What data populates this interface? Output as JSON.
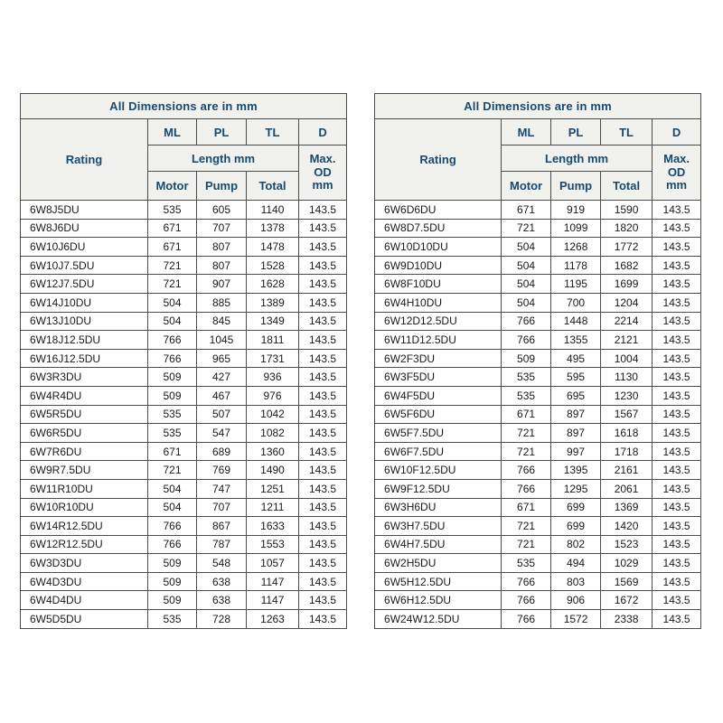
{
  "title_banner": "All Dimensions are in mm",
  "headers": {
    "rating": "Rating",
    "ml": "ML",
    "pl": "PL",
    "tl": "TL",
    "d": "D",
    "length_group": "Length mm",
    "max_od": "Max.\nOD\nmm",
    "motor": "Motor",
    "pump": "Pump",
    "total": "Total"
  },
  "colors": {
    "header_text": "#174a70",
    "header_background": "#f1f1ee",
    "border": "#4c4c4c",
    "body_text": "#1a1a1a",
    "page_background": "#ffffff"
  },
  "tables": [
    {
      "rows": [
        [
          "6W8J5DU",
          "535",
          "605",
          "1140",
          "143.5"
        ],
        [
          "6W8J6DU",
          "671",
          "707",
          "1378",
          "143.5"
        ],
        [
          "6W10J6DU",
          "671",
          "807",
          "1478",
          "143.5"
        ],
        [
          "6W10J7.5DU",
          "721",
          "807",
          "1528",
          "143.5"
        ],
        [
          "6W12J7.5DU",
          "721",
          "907",
          "1628",
          "143.5"
        ],
        [
          "6W14J10DU",
          "504",
          "885",
          "1389",
          "143.5"
        ],
        [
          "6W13J10DU",
          "504",
          "845",
          "1349",
          "143.5"
        ],
        [
          "6W18J12.5DU",
          "766",
          "1045",
          "1811",
          "143.5"
        ],
        [
          "6W16J12.5DU",
          "766",
          "965",
          "1731",
          "143.5"
        ],
        [
          "6W3R3DU",
          "509",
          "427",
          "936",
          "143.5"
        ],
        [
          "6W4R4DU",
          "509",
          "467",
          "976",
          "143.5"
        ],
        [
          "6W5R5DU",
          "535",
          "507",
          "1042",
          "143.5"
        ],
        [
          "6W6R5DU",
          "535",
          "547",
          "1082",
          "143.5"
        ],
        [
          "6W7R6DU",
          "671",
          "689",
          "1360",
          "143.5"
        ],
        [
          "6W9R7.5DU",
          "721",
          "769",
          "1490",
          "143.5"
        ],
        [
          "6W11R10DU",
          "504",
          "747",
          "1251",
          "143.5"
        ],
        [
          "6W10R10DU",
          "504",
          "707",
          "1211",
          "143.5"
        ],
        [
          "6W14R12.5DU",
          "766",
          "867",
          "1633",
          "143.5"
        ],
        [
          "6W12R12.5DU",
          "766",
          "787",
          "1553",
          "143.5"
        ],
        [
          "6W3D3DU",
          "509",
          "548",
          "1057",
          "143.5"
        ],
        [
          "6W4D3DU",
          "509",
          "638",
          "1147",
          "143.5"
        ],
        [
          "6W4D4DU",
          "509",
          "638",
          "1147",
          "143.5"
        ],
        [
          "6W5D5DU",
          "535",
          "728",
          "1263",
          "143.5"
        ]
      ]
    },
    {
      "rows": [
        [
          "6W6D6DU",
          "671",
          "919",
          "1590",
          "143.5"
        ],
        [
          "6W8D7.5DU",
          "721",
          "1099",
          "1820",
          "143.5"
        ],
        [
          "6W10D10DU",
          "504",
          "1268",
          "1772",
          "143.5"
        ],
        [
          "6W9D10DU",
          "504",
          "1178",
          "1682",
          "143.5"
        ],
        [
          "6W8F10DU",
          "504",
          "1195",
          "1699",
          "143.5"
        ],
        [
          "6W4H10DU",
          "504",
          "700",
          "1204",
          "143.5"
        ],
        [
          "6W12D12.5DU",
          "766",
          "1448",
          "2214",
          "143.5"
        ],
        [
          "6W11D12.5DU",
          "766",
          "1355",
          "2121",
          "143.5"
        ],
        [
          "6W2F3DU",
          "509",
          "495",
          "1004",
          "143.5"
        ],
        [
          "6W3F5DU",
          "535",
          "595",
          "1130",
          "143.5"
        ],
        [
          "6W4F5DU",
          "535",
          "695",
          "1230",
          "143.5"
        ],
        [
          "6W5F6DU",
          "671",
          "897",
          "1567",
          "143.5"
        ],
        [
          "6W5F7.5DU",
          "721",
          "897",
          "1618",
          "143.5"
        ],
        [
          "6W6F7.5DU",
          "721",
          "997",
          "1718",
          "143.5"
        ],
        [
          "6W10F12.5DU",
          "766",
          "1395",
          "2161",
          "143.5"
        ],
        [
          "6W9F12.5DU",
          "766",
          "1295",
          "2061",
          "143.5"
        ],
        [
          "6W3H6DU",
          "671",
          "699",
          "1369",
          "143.5"
        ],
        [
          "6W3H7.5DU",
          "721",
          "699",
          "1420",
          "143.5"
        ],
        [
          "6W4H7.5DU",
          "721",
          "802",
          "1523",
          "143.5"
        ],
        [
          "6W2H5DU",
          "535",
          "494",
          "1029",
          "143.5"
        ],
        [
          "6W5H12.5DU",
          "766",
          "803",
          "1569",
          "143.5"
        ],
        [
          "6W6H12.5DU",
          "766",
          "906",
          "1672",
          "143.5"
        ],
        [
          "6W24W12.5DU",
          "766",
          "1572",
          "2338",
          "143.5"
        ]
      ]
    }
  ]
}
